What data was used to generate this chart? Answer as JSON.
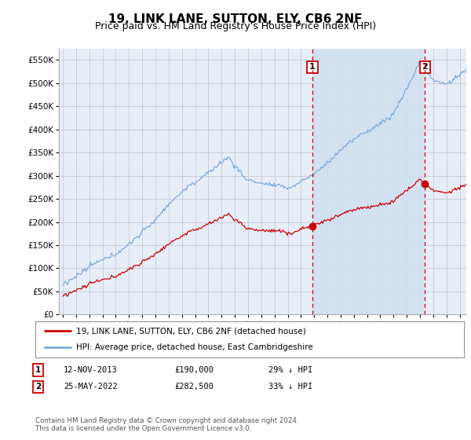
{
  "title": "19, LINK LANE, SUTTON, ELY, CB6 2NF",
  "subtitle": "Price paid vs. HM Land Registry's House Price Index (HPI)",
  "title_fontsize": 11,
  "subtitle_fontsize": 9,
  "background_color": "#ffffff",
  "plot_bg_color": "#e8eef8",
  "grid_color": "#c8c8d8",
  "line1_color": "#cc0000",
  "line2_color": "#7aaadd",
  "shade_color": "#d0e0f0",
  "sale1_date_x": 2013.87,
  "sale1_price": 190000,
  "sale2_date_x": 2022.38,
  "sale2_price": 282500,
  "dashed_line_color": "#cc0000",
  "legend_label1": "19, LINK LANE, SUTTON, ELY, CB6 2NF (detached house)",
  "legend_label2": "HPI: Average price, detached house, East Cambridgeshire",
  "footer": "Contains HM Land Registry data © Crown copyright and database right 2024.\nThis data is licensed under the Open Government Licence v3.0.",
  "ylim": [
    0,
    575000
  ],
  "xlim_start": 1994.7,
  "xlim_end": 2025.5,
  "yticks": [
    0,
    50000,
    100000,
    150000,
    200000,
    250000,
    300000,
    350000,
    400000,
    450000,
    500000,
    550000
  ]
}
